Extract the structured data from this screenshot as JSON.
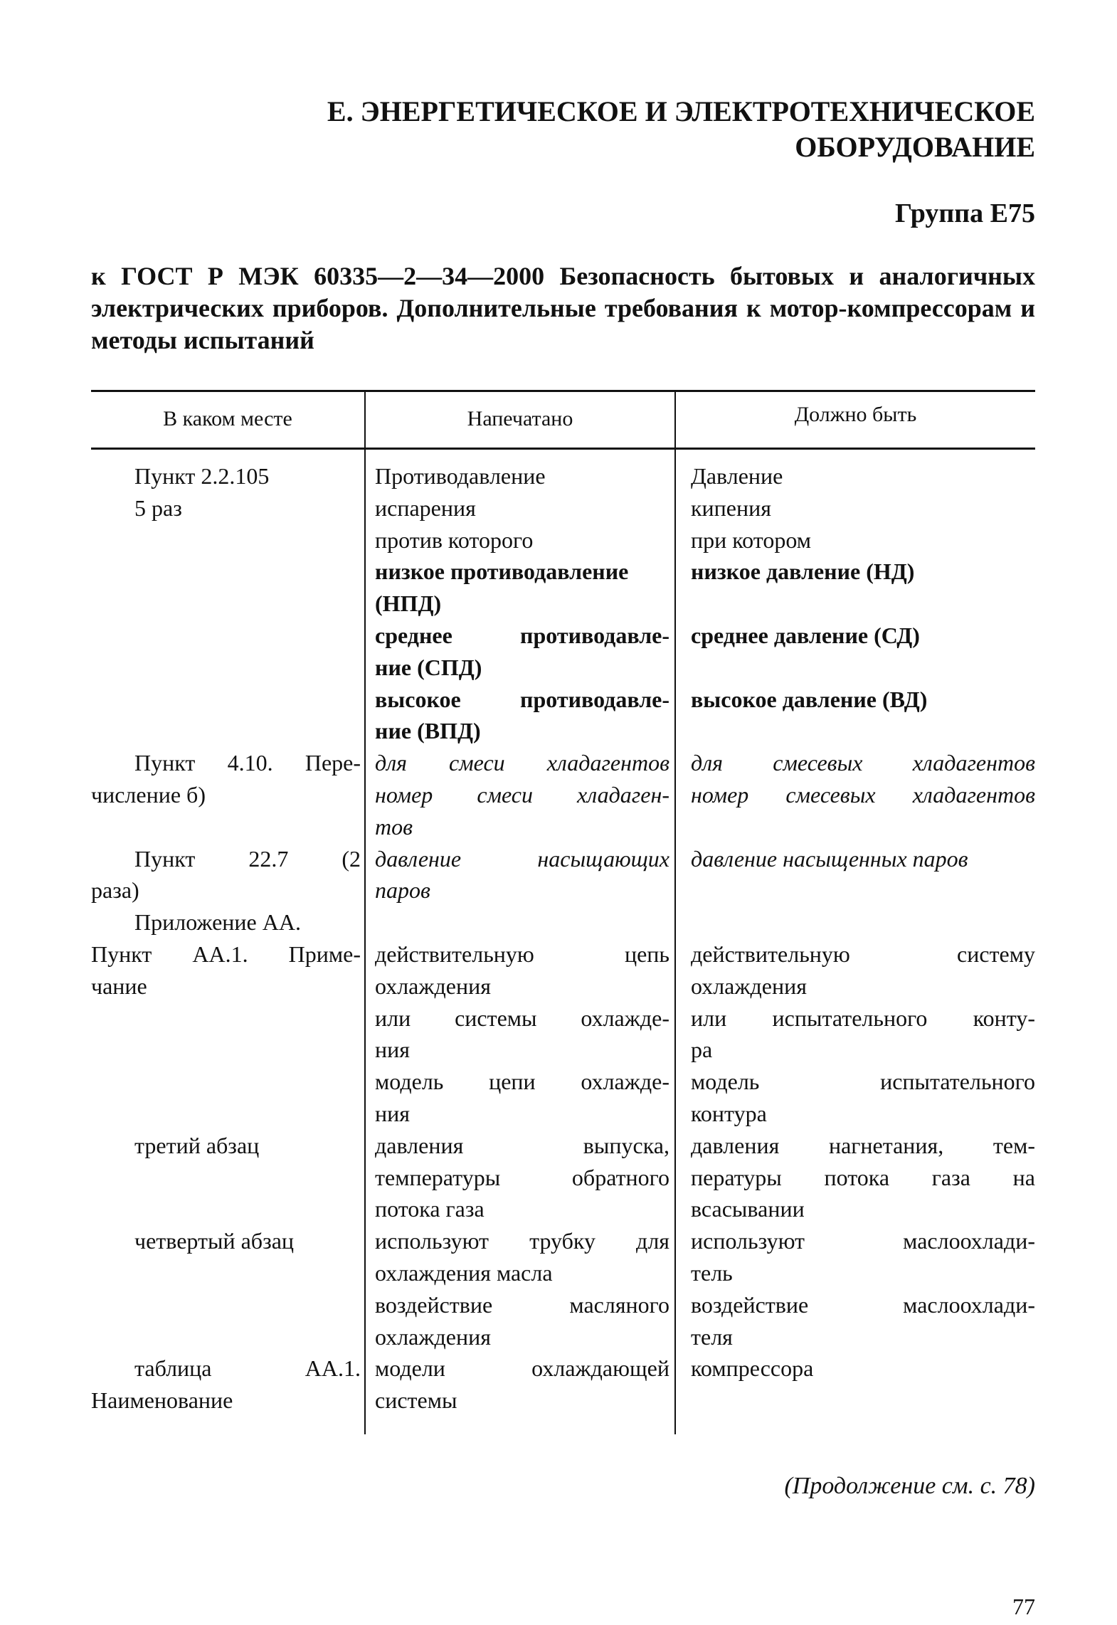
{
  "section_title": [
    "Е. ЭНЕРГЕТИЧЕСКОЕ И ЭЛЕКТРОТЕХНИЧЕСКОЕ",
    "ОБОРУДОВАНИЕ"
  ],
  "group": "Группа Е75",
  "subtitle": "к ГОСТ Р МЭК 60335—2—34—2000 Безопасность бытовых и аналогичных электрических приборов. Дополнительные требования к мотор-компрессорам и методы испытаний",
  "table": {
    "headers": [
      "В каком месте",
      "Напечатано",
      "Должно быть"
    ],
    "lines": [
      {
        "l": "Пункт 2.2.105",
        "li": 1,
        "m": "Противодавление",
        "r": "Давление"
      },
      {
        "l": "5 раз",
        "li": 1,
        "m": "испарения",
        "r": "кипения"
      },
      {
        "l": "",
        "m": "против которого",
        "r": "при котором"
      },
      {
        "l": "",
        "m": "низкое противодавление",
        "r": "низкое давление (НД)",
        "s": "bold"
      },
      {
        "l": "",
        "m": "(НПД)",
        "r": "",
        "s": "bold"
      },
      {
        "l": "",
        "m": "среднее противодавле-",
        "r": "среднее давление (СД)",
        "s": "bold",
        "mj": 1
      },
      {
        "l": "",
        "m": "ние (СПД)",
        "r": "",
        "s": "bold"
      },
      {
        "l": "",
        "m": "высокое противодавле-",
        "r": "высокое давление (ВД)",
        "s": "bold",
        "mj": 1
      },
      {
        "l": "",
        "m": "ние (ВПД)",
        "r": "",
        "s": "bold"
      },
      {
        "l": "Пункт 4.10. Пере-",
        "li": 1,
        "lj": 1,
        "m": "для смеси хладагентов",
        "r": "для смесевых хладагентов",
        "s": "italic",
        "mj": 1,
        "rj": 1
      },
      {
        "l": "числение б)",
        "m": "номер смеси хладаген-",
        "r": "номер смесевых хладагентов",
        "s": "italic",
        "mj": 1,
        "rj": 1
      },
      {
        "l": "",
        "m": "тов",
        "r": "",
        "s": "italic"
      },
      {
        "l": "Пункт 22.7 (2",
        "li": 1,
        "lj": 1,
        "m": "давление насыщающих",
        "r": "давление насыщенных паров",
        "s": "italic",
        "mj": 1
      },
      {
        "l": "раза)",
        "m": "паров",
        "r": "",
        "s": "italic"
      },
      {
        "l": "Приложение АА.",
        "li": 1,
        "m": "",
        "r": ""
      },
      {
        "l": "Пункт АА.1. Приме-",
        "lj": 1,
        "m": "действительную цепь",
        "r": "действительную систему",
        "mj": 1,
        "rj": 1
      },
      {
        "l": "чание",
        "m": "охлаждения",
        "r": "охлаждения"
      },
      {
        "l": "",
        "m": "или системы охлажде-",
        "r": "или испытательного конту-",
        "mj": 1,
        "rj": 1
      },
      {
        "l": "",
        "m": "ния",
        "r": "ра"
      },
      {
        "l": "",
        "m": "модель цепи охлажде-",
        "r": "модель испытательного",
        "mj": 1,
        "rj": 1
      },
      {
        "l": "",
        "m": "ния",
        "r": "контура"
      },
      {
        "l": "третий абзац",
        "li": 1,
        "m": "давления выпуска,",
        "r": "давления нагнетания, тем-",
        "mj": 1,
        "rj": 1
      },
      {
        "l": "",
        "m": "температуры обратного",
        "r": "пературы потока газа на",
        "mj": 1,
        "rj": 1
      },
      {
        "l": "",
        "m": "потока газа",
        "r": "всасывании"
      },
      {
        "l": "четвертый абзац",
        "li": 1,
        "m": "используют трубку для",
        "r": "используют маслоохлади-",
        "mj": 1,
        "rj": 1
      },
      {
        "l": "",
        "m": "охлаждения масла",
        "r": "тель"
      },
      {
        "l": "",
        "m": "воздействие масляного",
        "r": "воздействие маслоохлади-",
        "mj": 1,
        "rj": 1
      },
      {
        "l": "",
        "m": "охлаждения",
        "r": "теля"
      },
      {
        "l": "таблица АА.1.",
        "li": 1,
        "lj": 1,
        "m": "модели охлаждающей",
        "r": "компрессора",
        "mj": 1
      },
      {
        "l": "Наименование",
        "m": "системы",
        "r": ""
      }
    ]
  },
  "continuation": "(Продолжение см. с. 78)",
  "page_number": "77"
}
